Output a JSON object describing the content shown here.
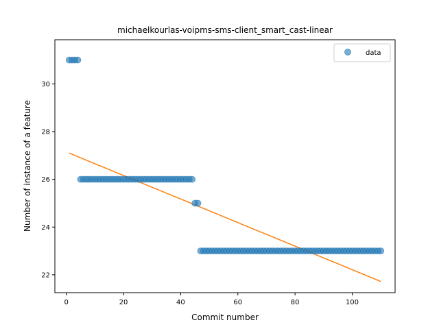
{
  "chart_data": {
    "type": "scatter",
    "title": "michaelkourlas-voipms-sms-client_smart_cast-linear",
    "xlabel": "Commit number",
    "ylabel": "Number of instance of a feature",
    "xlim": [
      -4,
      115
    ],
    "ylim": [
      21.25,
      31.85
    ],
    "xticks": [
      0,
      20,
      40,
      60,
      80,
      100
    ],
    "yticks": [
      22,
      24,
      26,
      28,
      30
    ],
    "legend": {
      "location": "top-right",
      "entries": [
        "data"
      ]
    },
    "grid": false,
    "colors": {
      "data": "#1f77b4",
      "fit": "#ff7f0e"
    },
    "series": [
      {
        "name": "data",
        "kind": "scatter",
        "segments": [
          {
            "x_start": 1,
            "x_end": 4,
            "y": 31
          },
          {
            "x_start": 5,
            "x_end": 44,
            "y": 26
          },
          {
            "x_start": 45,
            "x_end": 46,
            "y": 25
          },
          {
            "x_start": 47,
            "x_end": 110,
            "y": 23
          }
        ]
      },
      {
        "kind": "line",
        "x": [
          1,
          110
        ],
        "y": [
          27.1,
          21.72
        ]
      }
    ]
  }
}
